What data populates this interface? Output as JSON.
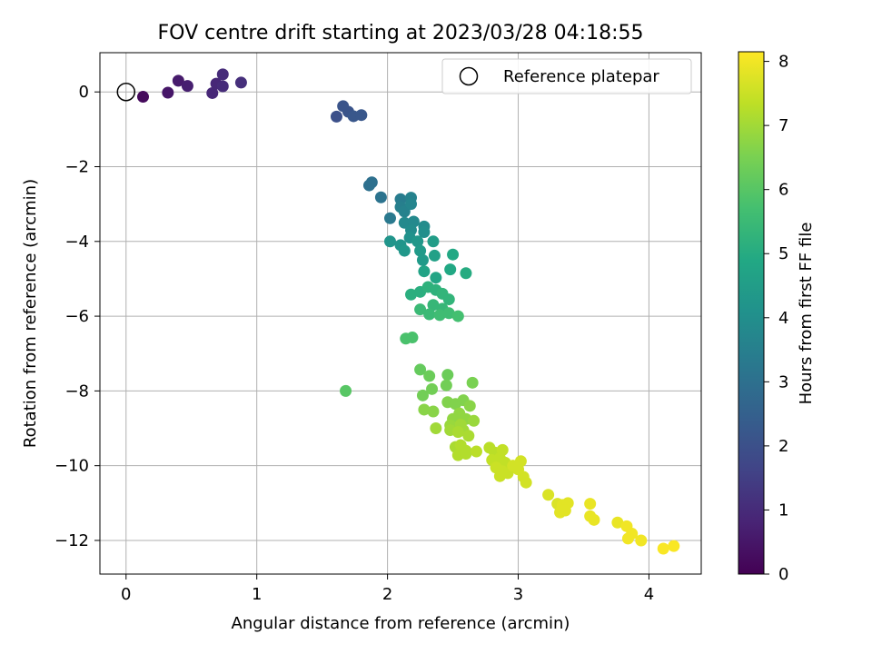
{
  "chart_data": {
    "type": "scatter",
    "title": "FOV centre drift starting at 2023/03/28 04:18:55",
    "xlabel": "Angular distance from reference (arcmin)",
    "ylabel": "Rotation from reference (arcmin)",
    "xlim": [
      -0.2,
      4.4
    ],
    "ylim": [
      -12.9,
      1.05
    ],
    "xticks": [
      0,
      1,
      2,
      3,
      4
    ],
    "yticks": [
      0,
      -2,
      -4,
      -6,
      -8,
      -10,
      -12
    ],
    "xtick_labels": [
      "0",
      "1",
      "2",
      "3",
      "4"
    ],
    "ytick_labels": [
      "0",
      "−2",
      "−4",
      "−6",
      "−8",
      "−10",
      "−12"
    ],
    "grid": true,
    "legend": {
      "placement": "top-right",
      "entries": [
        "Reference platepar"
      ]
    },
    "reference_point": {
      "x": 0,
      "y": 0
    },
    "colorbar": {
      "label": "Hours from first FF file",
      "range": [
        0,
        8.15
      ],
      "ticks": [
        0,
        1,
        2,
        3,
        4,
        5,
        6,
        7,
        8
      ],
      "tick_labels": [
        "0",
        "1",
        "2",
        "3",
        "4",
        "5",
        "6",
        "7",
        "8"
      ],
      "colormap": "viridis"
    },
    "points": [
      [
        0.13,
        -0.13,
        0.2
      ],
      [
        0.32,
        -0.02,
        0.5
      ],
      [
        0.4,
        0.3,
        0.6
      ],
      [
        0.47,
        0.16,
        0.7
      ],
      [
        0.66,
        -0.03,
        0.9
      ],
      [
        0.69,
        0.22,
        0.9
      ],
      [
        0.74,
        0.47,
        1.0
      ],
      [
        0.74,
        0.15,
        1.0
      ],
      [
        0.88,
        0.25,
        1.1
      ],
      [
        1.61,
        -0.66,
        2.0
      ],
      [
        1.66,
        -0.38,
        2.1
      ],
      [
        1.7,
        -0.53,
        2.1
      ],
      [
        1.74,
        -0.65,
        2.2
      ],
      [
        1.8,
        -0.62,
        2.2
      ],
      [
        1.86,
        -2.5,
        3.0
      ],
      [
        1.88,
        -2.42,
        3.0
      ],
      [
        1.95,
        -2.82,
        3.1
      ],
      [
        2.02,
        -3.38,
        3.3
      ],
      [
        2.1,
        -2.87,
        3.4
      ],
      [
        2.1,
        -3.08,
        3.5
      ],
      [
        2.13,
        -3.2,
        3.6
      ],
      [
        2.18,
        -2.83,
        3.6
      ],
      [
        2.18,
        -3.0,
        3.7
      ],
      [
        2.13,
        -3.5,
        3.8
      ],
      [
        2.2,
        -3.47,
        3.8
      ],
      [
        2.18,
        -3.7,
        3.9
      ],
      [
        2.28,
        -3.6,
        3.9
      ],
      [
        2.28,
        -3.75,
        4.0
      ],
      [
        2.17,
        -3.9,
        4.1
      ],
      [
        2.02,
        -4.0,
        4.2
      ],
      [
        2.1,
        -4.1,
        4.2
      ],
      [
        2.13,
        -4.25,
        4.3
      ],
      [
        2.23,
        -4.0,
        4.3
      ],
      [
        2.25,
        -4.25,
        4.4
      ],
      [
        2.27,
        -4.5,
        4.4
      ],
      [
        2.35,
        -4.0,
        4.5
      ],
      [
        2.36,
        -4.38,
        4.6
      ],
      [
        2.28,
        -4.8,
        4.7
      ],
      [
        2.37,
        -4.97,
        4.8
      ],
      [
        2.5,
        -4.35,
        4.9
      ],
      [
        2.48,
        -4.75,
        4.9
      ],
      [
        2.6,
        -4.85,
        5.0
      ],
      [
        2.18,
        -5.42,
        5.1
      ],
      [
        2.25,
        -5.35,
        5.1
      ],
      [
        2.31,
        -5.22,
        5.2
      ],
      [
        2.37,
        -5.3,
        5.2
      ],
      [
        2.42,
        -5.4,
        5.3
      ],
      [
        2.47,
        -5.55,
        5.3
      ],
      [
        2.35,
        -5.7,
        5.4
      ],
      [
        2.42,
        -5.8,
        5.4
      ],
      [
        2.25,
        -5.82,
        5.5
      ],
      [
        2.32,
        -5.95,
        5.5
      ],
      [
        2.4,
        -5.97,
        5.6
      ],
      [
        2.47,
        -5.92,
        5.6
      ],
      [
        2.54,
        -6.0,
        5.7
      ],
      [
        2.14,
        -6.6,
        5.8
      ],
      [
        2.19,
        -6.57,
        5.8
      ],
      [
        1.68,
        -8.0,
        6.0
      ],
      [
        2.25,
        -7.43,
        6.2
      ],
      [
        2.32,
        -7.6,
        6.3
      ],
      [
        2.46,
        -7.57,
        6.3
      ],
      [
        2.45,
        -7.85,
        6.4
      ],
      [
        2.34,
        -7.95,
        6.4
      ],
      [
        2.27,
        -8.12,
        6.4
      ],
      [
        2.65,
        -7.78,
        6.5
      ],
      [
        2.46,
        -8.3,
        6.6
      ],
      [
        2.52,
        -8.35,
        6.6
      ],
      [
        2.58,
        -8.25,
        6.6
      ],
      [
        2.63,
        -8.4,
        6.7
      ],
      [
        2.28,
        -8.5,
        6.7
      ],
      [
        2.35,
        -8.55,
        6.7
      ],
      [
        2.55,
        -8.6,
        6.8
      ],
      [
        2.5,
        -8.75,
        6.8
      ],
      [
        2.6,
        -8.75,
        6.8
      ],
      [
        2.66,
        -8.8,
        6.9
      ],
      [
        2.48,
        -8.92,
        6.9
      ],
      [
        2.52,
        -8.98,
        6.9
      ],
      [
        2.56,
        -8.9,
        7.0
      ],
      [
        2.58,
        -9.05,
        7.0
      ],
      [
        2.37,
        -9.0,
        7.0
      ],
      [
        2.48,
        -9.05,
        7.0
      ],
      [
        2.54,
        -9.1,
        7.1
      ],
      [
        2.62,
        -9.2,
        7.1
      ],
      [
        2.52,
        -9.5,
        7.1
      ],
      [
        2.56,
        -9.45,
        7.2
      ],
      [
        2.6,
        -9.6,
        7.2
      ],
      [
        2.54,
        -9.72,
        7.2
      ],
      [
        2.6,
        -9.68,
        7.2
      ],
      [
        2.68,
        -9.62,
        7.3
      ],
      [
        2.78,
        -9.52,
        7.3
      ],
      [
        2.82,
        -9.65,
        7.3
      ],
      [
        2.88,
        -9.58,
        7.4
      ],
      [
        2.8,
        -9.85,
        7.4
      ],
      [
        2.86,
        -9.8,
        7.4
      ],
      [
        2.9,
        -9.92,
        7.4
      ],
      [
        2.83,
        -10.05,
        7.5
      ],
      [
        2.88,
        -10.15,
        7.5
      ],
      [
        2.86,
        -10.28,
        7.5
      ],
      [
        2.92,
        -10.2,
        7.5
      ],
      [
        2.96,
        -10.0,
        7.6
      ],
      [
        3.02,
        -9.88,
        7.6
      ],
      [
        3.0,
        -10.1,
        7.6
      ],
      [
        3.04,
        -10.3,
        7.6
      ],
      [
        3.06,
        -10.45,
        7.6
      ],
      [
        3.23,
        -10.78,
        7.7
      ],
      [
        3.3,
        -11.02,
        7.7
      ],
      [
        3.34,
        -11.05,
        7.8
      ],
      [
        3.38,
        -11.0,
        7.8
      ],
      [
        3.32,
        -11.25,
        7.8
      ],
      [
        3.36,
        -11.2,
        7.8
      ],
      [
        3.55,
        -11.02,
        7.9
      ],
      [
        3.55,
        -11.35,
        7.9
      ],
      [
        3.58,
        -11.45,
        7.9
      ],
      [
        3.76,
        -11.52,
        7.9
      ],
      [
        3.83,
        -11.62,
        8.0
      ],
      [
        3.87,
        -11.82,
        8.0
      ],
      [
        3.84,
        -11.95,
        8.0
      ],
      [
        3.94,
        -12.0,
        8.0
      ],
      [
        4.11,
        -12.22,
        8.1
      ],
      [
        4.19,
        -12.15,
        8.1
      ]
    ]
  }
}
